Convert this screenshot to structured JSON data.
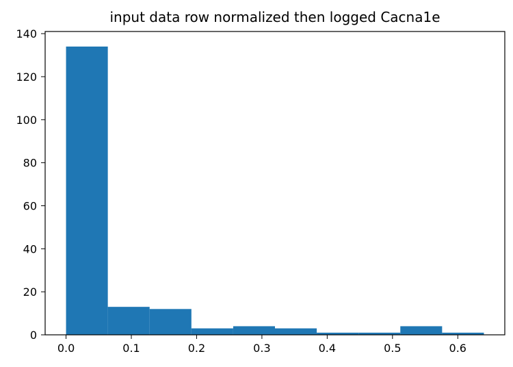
{
  "chart_data": {
    "type": "bar",
    "title": "input data row normalized then logged Cacna1e",
    "xlabel": "",
    "ylabel": "",
    "bins": [
      {
        "x0": 0.0,
        "x1": 0.064,
        "count": 134
      },
      {
        "x0": 0.064,
        "x1": 0.128,
        "count": 13
      },
      {
        "x0": 0.128,
        "x1": 0.192,
        "count": 12
      },
      {
        "x0": 0.192,
        "x1": 0.256,
        "count": 3
      },
      {
        "x0": 0.256,
        "x1": 0.32,
        "count": 4
      },
      {
        "x0": 0.32,
        "x1": 0.384,
        "count": 3
      },
      {
        "x0": 0.384,
        "x1": 0.448,
        "count": 1
      },
      {
        "x0": 0.448,
        "x1": 0.512,
        "count": 1
      },
      {
        "x0": 0.512,
        "x1": 0.576,
        "count": 4
      },
      {
        "x0": 0.576,
        "x1": 0.64,
        "count": 1
      }
    ],
    "xlim": [
      -0.032,
      0.672
    ],
    "ylim": [
      0,
      141
    ],
    "xticks": [
      "0.0",
      "0.1",
      "0.2",
      "0.3",
      "0.4",
      "0.5",
      "0.6"
    ],
    "yticks": [
      "0",
      "20",
      "40",
      "60",
      "80",
      "100",
      "120",
      "140"
    ],
    "bar_color": "#1f77b4",
    "grid": false,
    "legend": "none"
  }
}
